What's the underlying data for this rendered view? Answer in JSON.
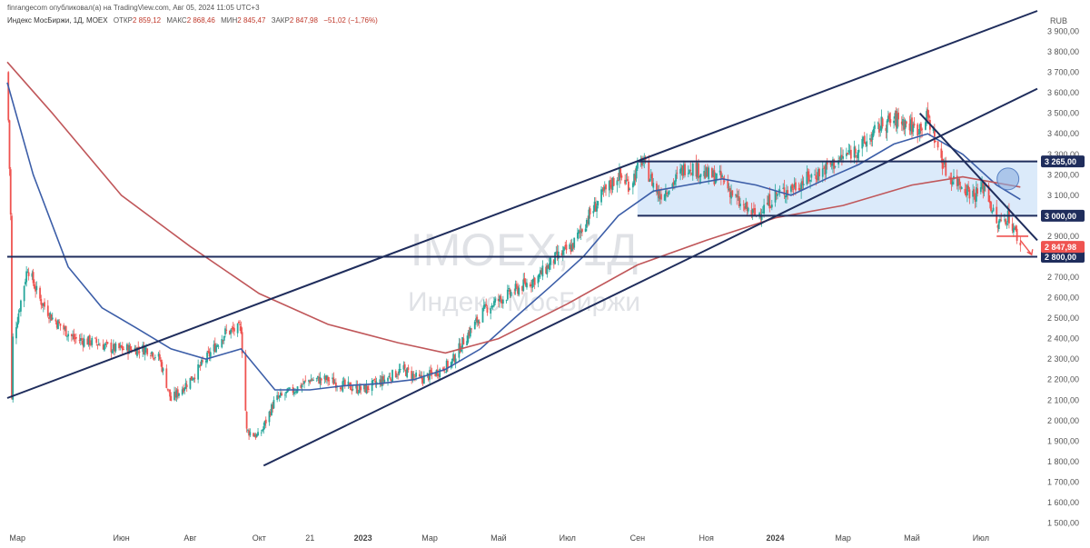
{
  "header": {
    "publisher_line": "finrangecom опубликовал(а) на TradingView.com, Авг 05, 2024 11:05 UTC+3",
    "symbol": "Индекс МосБиржи, 1Д, MOEX",
    "open_label": "ОТКР",
    "open_value": "2 859,12",
    "high_label": "МАКС",
    "high_value": "2 868,46",
    "low_label": "МИН",
    "low_value": "2 845,47",
    "close_label": "ЗАКР",
    "close_value": "2 847,98",
    "change": "−51,02 (−1,76%)"
  },
  "watermark": {
    "ticker": "IMOEX, 1Д",
    "name": "Индекс МосБиржи"
  },
  "colors": {
    "candle_up": "#26a69a",
    "candle_down": "#ef5350",
    "ma_short": "#3c5ea8",
    "ma_long": "#c0575a",
    "trendline": "#1f2d5c",
    "range_fill": "#cfe3f8",
    "price_badge": "#1f2d5c",
    "last_price_badge": "#ef5350"
  },
  "chart_data": {
    "type": "candlestick",
    "timeframe": "1Д",
    "currency": "RUB",
    "ylim": [
      1480,
      4000
    ],
    "y_ticks": [
      1500,
      1600,
      1700,
      1800,
      1900,
      2000,
      2100,
      2200,
      2300,
      2400,
      2500,
      2600,
      2700,
      2800,
      2900,
      3000,
      3100,
      3200,
      3300,
      3400,
      3500,
      3600,
      3700,
      3800,
      3900
    ],
    "y_tick_labels": [
      "1 500,00",
      "1 600,00",
      "1 700,00",
      "1 800,00",
      "1 900,00",
      "2 000,00",
      "2 100,00",
      "2 200,00",
      "2 300,00",
      "2 400,00",
      "2 500,00",
      "2 600,00",
      "2 700,00",
      "2 800,00",
      "2 900,00",
      "3 000,00",
      "3 100,00",
      "3 200,00",
      "3 300,00",
      "3 400,00",
      "3 500,00",
      "3 600,00",
      "3 700,00",
      "3 800,00",
      "3 900,00"
    ],
    "x_range": [
      "2022-02-20",
      "2024-08-20"
    ],
    "x_ticks": [
      {
        "date": "2022-03-01",
        "label": "Мар"
      },
      {
        "date": "2022-06-01",
        "label": "Июн"
      },
      {
        "date": "2022-08-01",
        "label": "Авг"
      },
      {
        "date": "2022-10-01",
        "label": "Окт"
      },
      {
        "date": "2022-11-15",
        "label": "21"
      },
      {
        "date": "2023-01-01",
        "label": "2023"
      },
      {
        "date": "2023-03-01",
        "label": "Мар"
      },
      {
        "date": "2023-05-01",
        "label": "Май"
      },
      {
        "date": "2023-07-01",
        "label": "Июл"
      },
      {
        "date": "2023-09-01",
        "label": "Сен"
      },
      {
        "date": "2023-11-01",
        "label": "Ноя"
      },
      {
        "date": "2024-01-01",
        "label": "2024"
      },
      {
        "date": "2024-03-01",
        "label": "Мар"
      },
      {
        "date": "2024-05-01",
        "label": "Май"
      },
      {
        "date": "2024-07-01",
        "label": "Июл"
      }
    ],
    "price_path": [
      [
        "2022-02-20",
        3700
      ],
      [
        "2022-02-23",
        3000
      ],
      [
        "2022-02-24",
        2100
      ],
      [
        "2022-02-25",
        2400
      ],
      [
        "2022-03-01",
        2500
      ],
      [
        "2022-03-10",
        2750
      ],
      [
        "2022-03-20",
        2600
      ],
      [
        "2022-04-01",
        2500
      ],
      [
        "2022-04-20",
        2400
      ],
      [
        "2022-05-10",
        2380
      ],
      [
        "2022-05-25",
        2350
      ],
      [
        "2022-06-10",
        2350
      ],
      [
        "2022-06-25",
        2350
      ],
      [
        "2022-07-05",
        2300
      ],
      [
        "2022-07-15",
        2100
      ],
      [
        "2022-08-01",
        2200
      ],
      [
        "2022-08-15",
        2300
      ],
      [
        "2022-09-01",
        2430
      ],
      [
        "2022-09-15",
        2450
      ],
      [
        "2022-09-20",
        1950
      ],
      [
        "2022-10-01",
        1920
      ],
      [
        "2022-10-15",
        2100
      ],
      [
        "2022-11-01",
        2150
      ],
      [
        "2022-11-15",
        2200
      ],
      [
        "2022-12-01",
        2200
      ],
      [
        "2022-12-15",
        2170
      ],
      [
        "2023-01-01",
        2150
      ],
      [
        "2023-01-20",
        2200
      ],
      [
        "2023-02-05",
        2250
      ],
      [
        "2023-02-20",
        2200
      ],
      [
        "2023-03-05",
        2230
      ],
      [
        "2023-03-20",
        2280
      ],
      [
        "2023-04-01",
        2400
      ],
      [
        "2023-04-20",
        2550
      ],
      [
        "2023-05-05",
        2600
      ],
      [
        "2023-05-20",
        2650
      ],
      [
        "2023-06-05",
        2700
      ],
      [
        "2023-06-20",
        2790
      ],
      [
        "2023-07-05",
        2850
      ],
      [
        "2023-07-20",
        3000
      ],
      [
        "2023-08-01",
        3100
      ],
      [
        "2023-08-15",
        3200
      ],
      [
        "2023-08-25",
        3150
      ],
      [
        "2023-09-05",
        3270
      ],
      [
        "2023-09-20",
        3100
      ],
      [
        "2023-10-01",
        3150
      ],
      [
        "2023-10-15",
        3250
      ],
      [
        "2023-11-01",
        3200
      ],
      [
        "2023-11-15",
        3180
      ],
      [
        "2023-12-01",
        3050
      ],
      [
        "2023-12-15",
        3000
      ],
      [
        "2024-01-01",
        3100
      ],
      [
        "2024-01-20",
        3150
      ],
      [
        "2024-02-05",
        3200
      ],
      [
        "2024-02-20",
        3250
      ],
      [
        "2024-03-05",
        3300
      ],
      [
        "2024-03-20",
        3350
      ],
      [
        "2024-04-05",
        3450
      ],
      [
        "2024-04-20",
        3470
      ],
      [
        "2024-05-05",
        3420
      ],
      [
        "2024-05-15",
        3480
      ],
      [
        "2024-05-20",
        3400
      ],
      [
        "2024-06-01",
        3200
      ],
      [
        "2024-06-15",
        3150
      ],
      [
        "2024-06-25",
        3100
      ],
      [
        "2024-07-05",
        3150
      ],
      [
        "2024-07-15",
        2950
      ],
      [
        "2024-07-25",
        3000
      ],
      [
        "2024-08-02",
        2900
      ],
      [
        "2024-08-05",
        2848
      ]
    ],
    "series": [
      {
        "name": "",
        "color": "#3c5ea8",
        "points": [
          [
            "2022-02-20",
            3650
          ],
          [
            "2022-03-15",
            3200
          ],
          [
            "2022-04-15",
            2750
          ],
          [
            "2022-05-15",
            2550
          ],
          [
            "2022-06-15",
            2450
          ],
          [
            "2022-07-15",
            2350
          ],
          [
            "2022-08-15",
            2300
          ],
          [
            "2022-09-15",
            2350
          ],
          [
            "2022-10-15",
            2150
          ],
          [
            "2022-11-15",
            2150
          ],
          [
            "2022-12-15",
            2170
          ],
          [
            "2023-01-15",
            2180
          ],
          [
            "2023-02-15",
            2200
          ],
          [
            "2023-03-15",
            2250
          ],
          [
            "2023-04-15",
            2350
          ],
          [
            "2023-05-15",
            2500
          ],
          [
            "2023-06-15",
            2650
          ],
          [
            "2023-07-15",
            2800
          ],
          [
            "2023-08-15",
            3000
          ],
          [
            "2023-09-15",
            3120
          ],
          [
            "2023-10-15",
            3150
          ],
          [
            "2023-11-15",
            3180
          ],
          [
            "2023-12-15",
            3150
          ],
          [
            "2024-01-15",
            3100
          ],
          [
            "2024-02-15",
            3180
          ],
          [
            "2024-03-15",
            3250
          ],
          [
            "2024-04-15",
            3350
          ],
          [
            "2024-05-15",
            3400
          ],
          [
            "2024-06-15",
            3300
          ],
          [
            "2024-07-15",
            3150
          ],
          [
            "2024-08-05",
            3080
          ]
        ]
      },
      {
        "name": "",
        "color": "#c0575a",
        "points": [
          [
            "2022-02-20",
            3750
          ],
          [
            "2022-04-01",
            3500
          ],
          [
            "2022-06-01",
            3100
          ],
          [
            "2022-08-01",
            2850
          ],
          [
            "2022-10-01",
            2620
          ],
          [
            "2022-12-01",
            2470
          ],
          [
            "2023-02-01",
            2380
          ],
          [
            "2023-03-15",
            2330
          ],
          [
            "2023-05-01",
            2400
          ],
          [
            "2023-07-01",
            2570
          ],
          [
            "2023-09-01",
            2760
          ],
          [
            "2023-11-01",
            2880
          ],
          [
            "2024-01-01",
            2990
          ],
          [
            "2024-03-01",
            3050
          ],
          [
            "2024-05-01",
            3150
          ],
          [
            "2024-06-15",
            3190
          ],
          [
            "2024-08-05",
            3140
          ]
        ]
      }
    ],
    "trendlines": [
      {
        "from": [
          "2022-02-20",
          2110
        ],
        "to": [
          "2024-08-20",
          4000
        ]
      },
      {
        "from": [
          "2022-10-05",
          1780
        ],
        "to": [
          "2024-08-20",
          3620
        ]
      },
      {
        "from": [
          "2022-02-20",
          2800
        ],
        "to": [
          "2024-08-20",
          2800
        ]
      },
      {
        "from": [
          "2024-05-08",
          3500
        ],
        "to": [
          "2024-08-20",
          2880
        ]
      },
      {
        "from": [
          "2023-09-01",
          3265
        ],
        "to": [
          "2024-08-20",
          3265
        ]
      },
      {
        "from": [
          "2023-09-01",
          3000
        ],
        "to": [
          "2024-08-20",
          3000
        ]
      }
    ],
    "range_box": {
      "x0": "2023-09-01",
      "x1": "2024-08-20",
      "y0": 3000,
      "y1": 3265
    },
    "price_badges": [
      {
        "value": 3265,
        "label": "3 265,00"
      },
      {
        "value": 3000,
        "label": "3 000,00"
      },
      {
        "value": 2800,
        "label": "2 800,00"
      }
    ],
    "last_price": {
      "value": 2847.98,
      "label": "2 847,98"
    },
    "support_segment": {
      "from": [
        "2024-07-15",
        2900
      ],
      "to": [
        "2024-08-12",
        2900
      ]
    },
    "arrow": {
      "from": [
        "2024-08-05",
        2880
      ],
      "to": [
        "2024-08-15",
        2810
      ]
    },
    "circle_marker": {
      "date": "2024-07-25",
      "value": 3180
    }
  }
}
